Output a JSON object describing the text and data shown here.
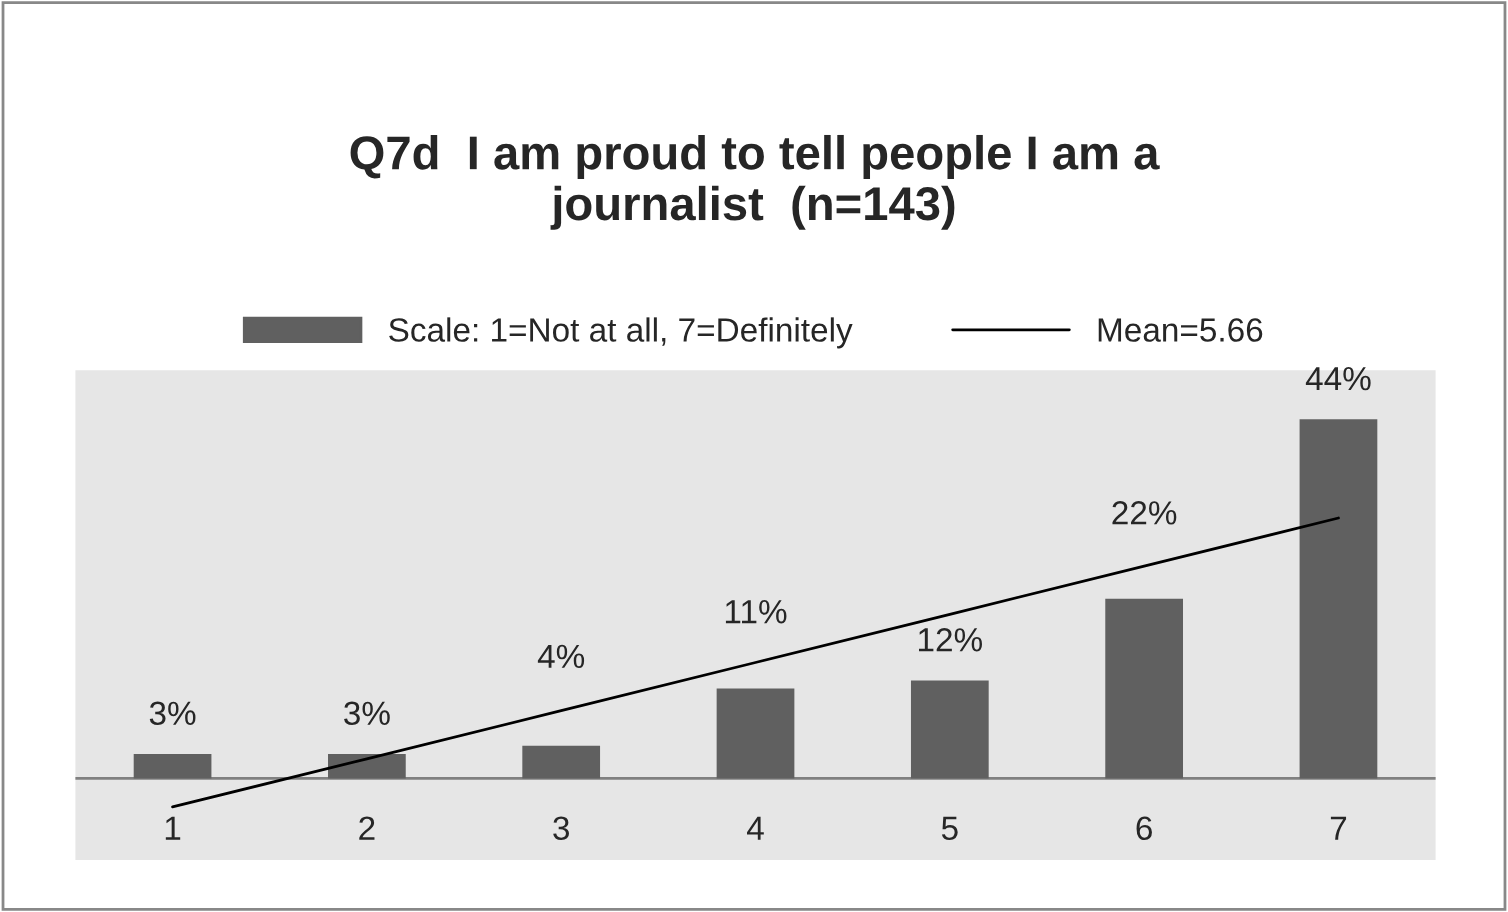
{
  "chart_data": {
    "type": "bar",
    "title": "Q7d  I am proud to tell people I am a journalist  (n=143)",
    "categories": [
      "1",
      "2",
      "3",
      "4",
      "5",
      "6",
      "7"
    ],
    "series": [
      {
        "name": "Scale: 1=Not at all, 7=Definitely",
        "color": "#606060",
        "values": [
          3,
          3,
          4,
          11,
          12,
          22,
          44
        ],
        "value_labels": [
          "3%",
          "3%",
          "4%",
          "11%",
          "12%",
          "22%",
          "44%"
        ]
      },
      {
        "name": "Mean=5.66",
        "type": "line",
        "color": "#000000",
        "values": [
          -3.5,
          2.4,
          8.3,
          14.2,
          20.1,
          26.0,
          31.9
        ]
      }
    ],
    "ylim": [
      -10,
      50
    ],
    "tick_labels": "x",
    "legend": "top",
    "grid": false
  }
}
